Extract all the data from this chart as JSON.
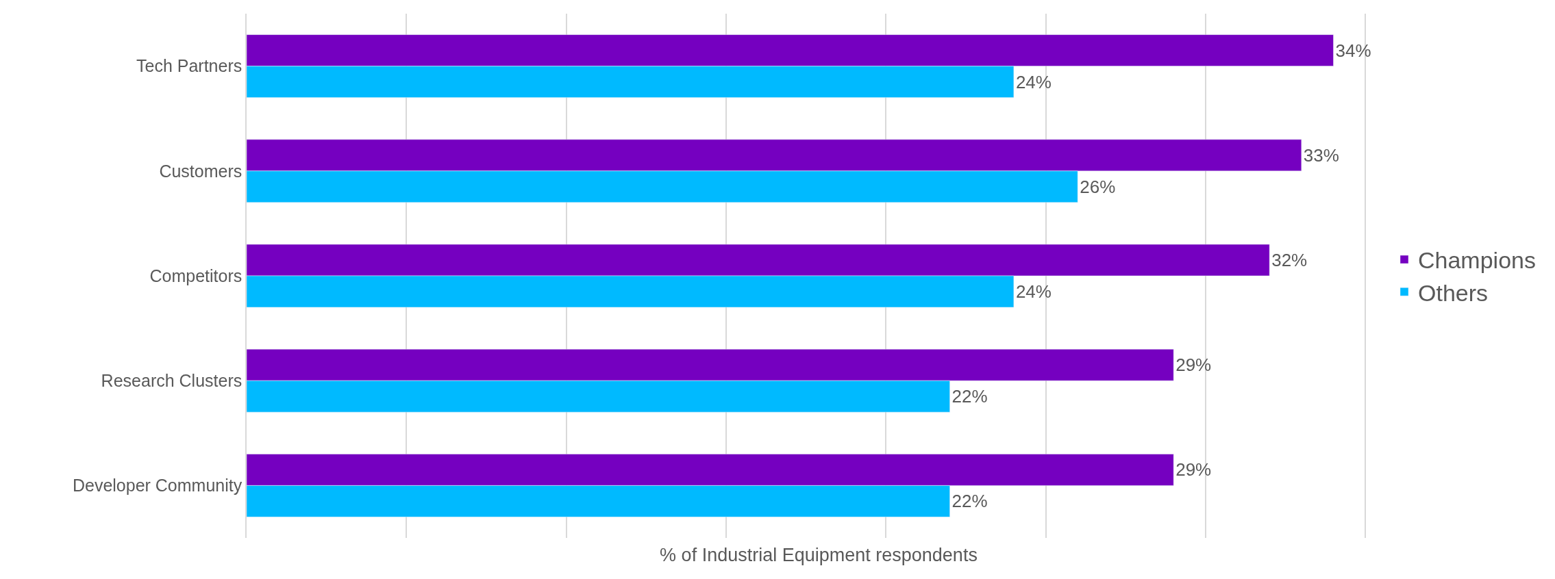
{
  "chart_data": {
    "type": "bar",
    "orientation": "horizontal",
    "xlabel": "% of Industrial Equipment respondents",
    "categories": [
      "Tech Partners",
      "Customers",
      "Competitors",
      "Research Clusters",
      "Developer Community"
    ],
    "series": [
      {
        "name": "Champions",
        "color": "#7500c0",
        "values": [
          34,
          33,
          32,
          29,
          29
        ],
        "value_labels": [
          "34%",
          "33%",
          "32%",
          "29%",
          "29%"
        ]
      },
      {
        "name": "Others",
        "color": "#00baff",
        "values": [
          24,
          26,
          24,
          22,
          22
        ],
        "value_labels": [
          "24%",
          "26%",
          "24%",
          "22%",
          "22%"
        ]
      }
    ],
    "xticks": [
      {
        "value": 0,
        "label": null
      },
      {
        "value": 5,
        "label": null
      },
      {
        "value": 10,
        "label": null
      },
      {
        "value": 15,
        "label": null
      },
      {
        "value": 20,
        "label": null
      },
      {
        "value": 25,
        "label": null
      },
      {
        "value": 30,
        "label": null
      },
      {
        "value": 35,
        "label": null
      }
    ],
    "grid": "x",
    "legend": "right"
  }
}
